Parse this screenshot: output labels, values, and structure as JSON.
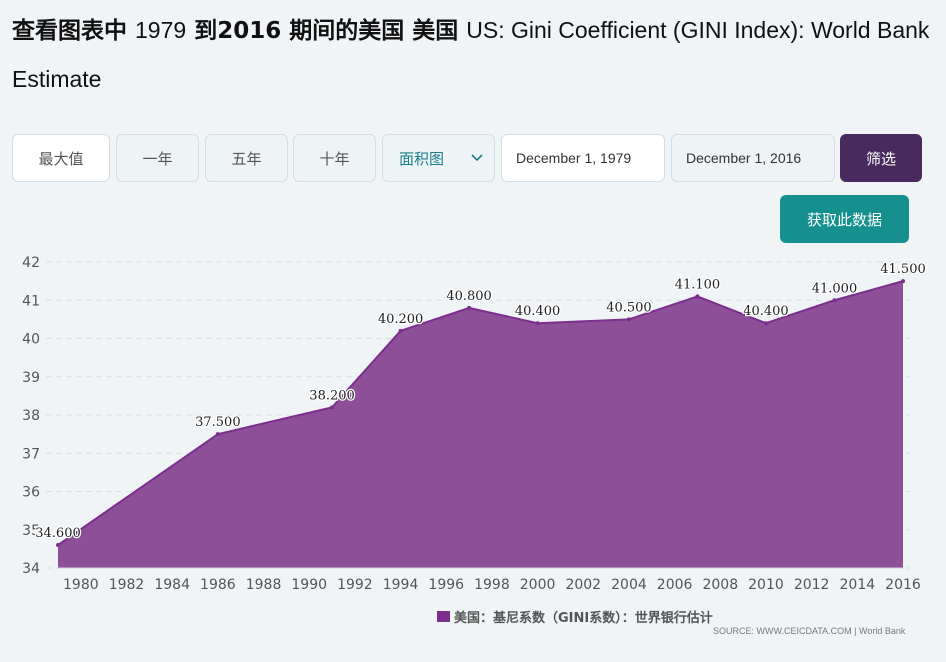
{
  "header": {
    "title_prefix": "查看图表中",
    "year_from": "1979",
    "title_mid": "到2016 期间的美国 美国",
    "title_series": "US: Gini Coefficient (GINI Index): World Bank Estimate"
  },
  "toolbar": {
    "buttons": [
      "最大值",
      "一年",
      "五年",
      "十年"
    ],
    "chart_type": "面积图",
    "date_from": "December 1, 1979",
    "date_to": "December 1, 2016",
    "filter_label": "筛选"
  },
  "get_data_label": "获取此数据",
  "legend": {
    "label": "美国：基尼系数（GINI系数）：世界银行估计"
  },
  "source": "SOURCE: WWW.CEICDATA.COM | World Bank",
  "colors": {
    "area": "#8e4f99",
    "line": "#7b2f8c",
    "filter_button": "#4a2a5e",
    "get_data_button": "#168f8f"
  },
  "chart_data": {
    "type": "area",
    "x": [
      1979,
      1986,
      1991,
      1994,
      1997,
      2000,
      2004,
      2007,
      2010,
      2013,
      2016
    ],
    "values": [
      34.6,
      37.5,
      38.2,
      40.2,
      40.8,
      40.4,
      40.5,
      41.1,
      40.4,
      41.0,
      41.5
    ],
    "data_labels": [
      "34.600",
      "37.500",
      "38.200",
      "40.200",
      "40.800",
      "40.400",
      "40.500",
      "41.100",
      "40.400",
      "41.000",
      "41.500"
    ],
    "x_ticks": [
      "1980",
      "1982",
      "1984",
      "1986",
      "1988",
      "1990",
      "1992",
      "1994",
      "1996",
      "1998",
      "2000",
      "2002",
      "2004",
      "2006",
      "2008",
      "2010",
      "2012",
      "2014",
      "2016"
    ],
    "y_ticks": [
      "34",
      "35",
      "36",
      "37",
      "38",
      "39",
      "40",
      "41",
      "42"
    ],
    "xlim": [
      1979,
      2016
    ],
    "ylim": [
      34,
      42
    ],
    "grid": true
  }
}
